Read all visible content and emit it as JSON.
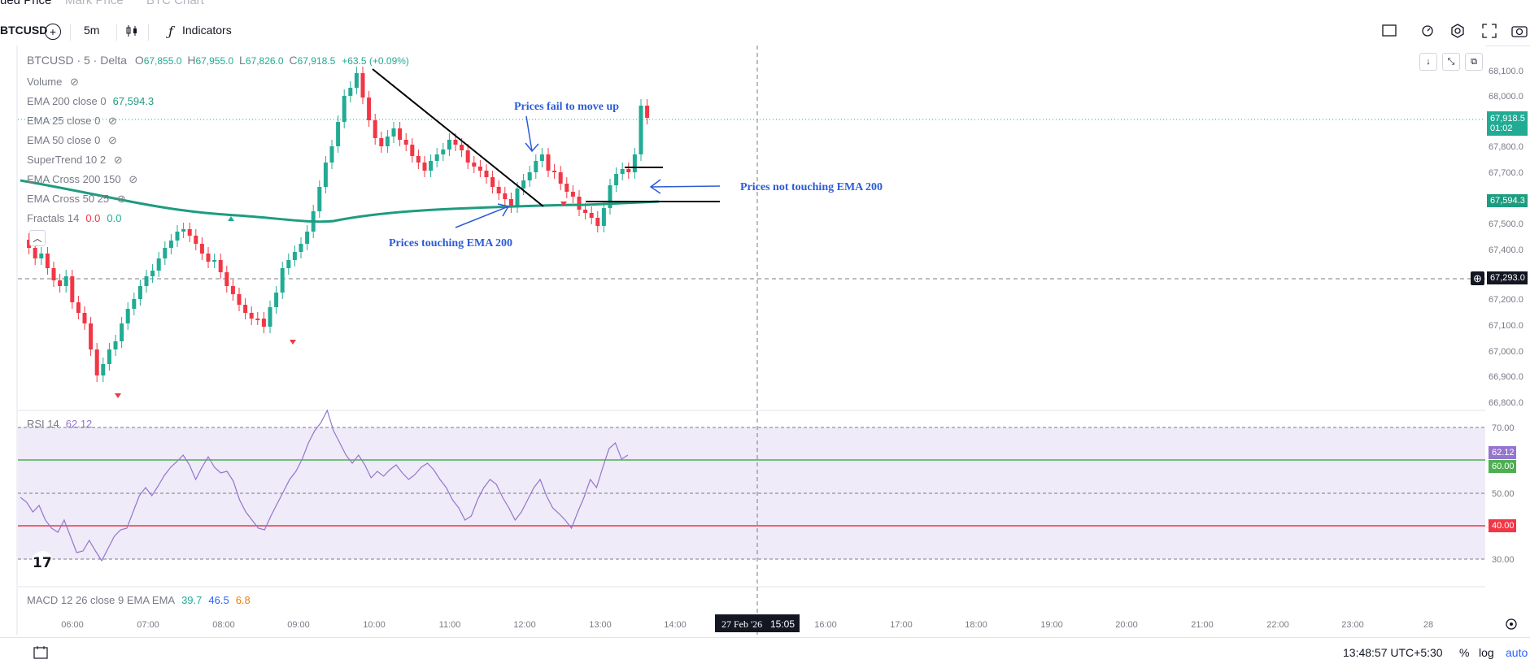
{
  "topbar": {
    "tabs": [
      "ued Price",
      "Mark Price",
      "BTC Chart"
    ]
  },
  "toolbar": {
    "symbol": "BTCUSD",
    "interval": "5m",
    "indicators_label": "Indicators"
  },
  "legend": {
    "symbol_line": "BTCUSD · 5 · Delta",
    "open_label": "O",
    "open": "67,855.0",
    "high_label": "H",
    "high": "67,955.0",
    "low_label": "L",
    "low": "67,826.0",
    "close_label": "C",
    "close": "67,918.5",
    "change": "+63.5 (+0.09%)",
    "volume": "Volume",
    "ema200": "EMA 200 close 0",
    "ema200_value": "67,594.3",
    "ema25": "EMA 25 close 0",
    "ema50": "EMA 50 close 0",
    "supertrend": "SuperTrend 10 2",
    "emacross1": "EMA Cross 200 150",
    "emacross2": "EMA Cross 50 25",
    "fractals": "Fractals 14",
    "fractals_v1": "0.0",
    "fractals_v2": "0.0",
    "rsi": "RSI 14",
    "rsi_value": "62.12",
    "macd": "MACD 12 26 close 9 EMA EMA",
    "macd_v1": "39.7",
    "macd_v2": "46.5",
    "macd_v3": "6.8"
  },
  "annotations": {
    "fail": "Prices fail to move up",
    "not_touching": "Prices not touching EMA 200",
    "touching": "Prices touching EMA 200"
  },
  "price_axis": {
    "labels": [
      "68,100.0",
      "68,000.0",
      "67,800.0",
      "67,700.0",
      "67,500.0",
      "67,400.0",
      "67,200.0",
      "67,100.0",
      "67,000.0",
      "66,900.0",
      "66,800.0"
    ],
    "last_price": "67,918.5",
    "countdown": "01:02",
    "ema_tag": "67,594.3",
    "crosshair_tag": "67,293.0"
  },
  "rsi_axis": {
    "labels": [
      "70.00",
      "50.00",
      "30.00"
    ],
    "rsi_tag": "62.12",
    "upper_tag": "60.00",
    "lower_tag": "40.00"
  },
  "time_axis": {
    "labels": [
      "06:00",
      "07:00",
      "08:00",
      "09:00",
      "10:00",
      "11:00",
      "12:00",
      "13:00",
      "14:00",
      "16:00",
      "17:00",
      "18:00",
      "19:00",
      "20:00",
      "21:00",
      "22:00",
      "23:00",
      "28"
    ],
    "crosshair_date": "27 Feb '26",
    "crosshair_time": "15:05"
  },
  "status": {
    "clock": "13:48:57 UTC+5:30",
    "percent": "%",
    "log": "log",
    "auto": "auto"
  },
  "colors": {
    "up": "#22ab94",
    "down": "#f23645",
    "ema": "#1e9c80",
    "rsi": "#9575cd",
    "rsi_band": "#efebf8",
    "rsi_upper": "#4caf50",
    "rsi_lower": "#f23645",
    "annotation": "#2b5cd6"
  }
}
